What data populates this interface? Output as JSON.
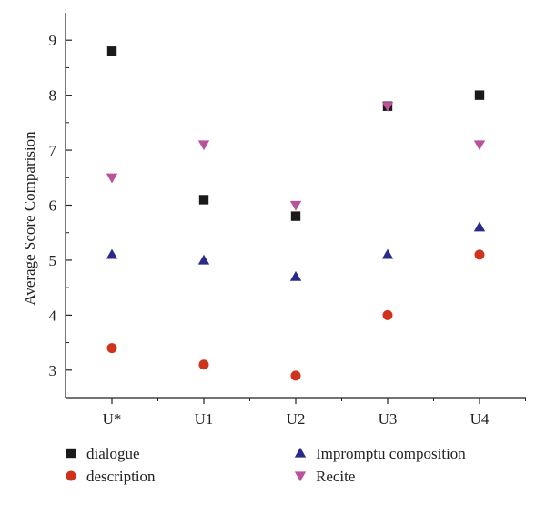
{
  "chart_data": {
    "type": "scatter",
    "title": "",
    "xlabel": "",
    "ylabel": "Average Score Comparision",
    "categories": [
      "U*",
      "U1",
      "U2",
      "U3",
      "U4"
    ],
    "ylim": [
      2.5,
      9.5
    ],
    "yticks": [
      3,
      4,
      5,
      6,
      7,
      8,
      9
    ],
    "grid": false,
    "legend_position": "bottom",
    "series": [
      {
        "name": "dialogue",
        "marker": "square",
        "color": "#1a1a1a",
        "values": [
          8.8,
          6.1,
          5.8,
          7.8,
          8.0
        ]
      },
      {
        "name": "description",
        "marker": "circle",
        "color": "#d0331c",
        "values": [
          3.4,
          3.1,
          2.9,
          4.0,
          5.1
        ]
      },
      {
        "name": "Impromptu composition",
        "marker": "triangle-up",
        "color": "#2b2a8c",
        "values": [
          5.1,
          5.0,
          4.7,
          5.1,
          5.6
        ]
      },
      {
        "name": "Recite",
        "marker": "triangle-down",
        "color": "#b9539c",
        "values": [
          6.5,
          7.1,
          6.0,
          7.8,
          7.1
        ]
      }
    ]
  }
}
